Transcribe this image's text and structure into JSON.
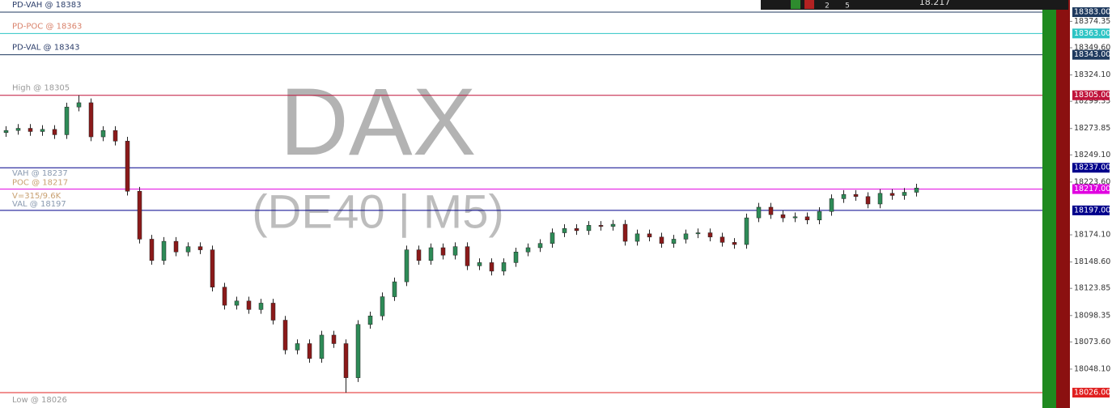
{
  "chart_data": {
    "type": "candlestick",
    "watermark": "DAX",
    "watermark_sub": "(DE40 | M5)",
    "annotation": "V=315/9.6K",
    "toolbar": {
      "buttons": [
        "2",
        "5"
      ],
      "price": "18.217"
    },
    "up_color": "#2e8b57",
    "down_color": "#8b1a1a",
    "ylim": [
      18011.6,
      18394.4
    ],
    "yticks": [
      18374.35,
      {
        "value": 18349.6,
        "label": "18349.60"
      },
      {
        "value": 18324.1,
        "label": "18324.10"
      },
      18299.35,
      18273.85,
      {
        "value": 18249.1,
        "label": "18249.10"
      },
      {
        "value": 18223.6,
        "label": "18223.60"
      },
      {
        "value": 18174.1,
        "label": "18174.10"
      },
      {
        "value": 18148.6,
        "label": "18148.60"
      },
      18123.85,
      18098.35,
      {
        "value": 18073.6,
        "label": "18073.60"
      },
      {
        "value": 18048.1,
        "label": "18048.10"
      }
    ],
    "levels": [
      {
        "label": "PD-VAH @ 18383",
        "value": 18383,
        "tag": "18383.00",
        "color": "#1f3a5f",
        "text_color": "#2d3f6b"
      },
      {
        "label": "PD-POC @ 18363",
        "value": 18363,
        "tag": "18363.00",
        "color": "#2ec4c4",
        "text_color": "#d9826b"
      },
      {
        "label": "PD-VAL @ 18343",
        "value": 18343,
        "tag": "18343.00",
        "color": "#1f3a5f",
        "text_color": "#2d3f6b"
      },
      {
        "label": "High @ 18305",
        "value": 18305,
        "tag": "18305.00",
        "color": "#c0143c",
        "text_color": "#9a9a9a"
      },
      {
        "label": "VAH @ 18237",
        "value": 18237,
        "tag": "18237.00",
        "color": "#00008b",
        "text_color": "#8a9ab0"
      },
      {
        "label": "POC @ 18217",
        "value": 18217,
        "tag": "18217.00",
        "color": "#e000e0",
        "text_color": "#c8a070"
      },
      {
        "label": "VAL @ 18197",
        "value": 18197,
        "tag": "18197.00",
        "color": "#00008b",
        "text_color": "#8a9ab0"
      },
      {
        "label": "Low @ 18026",
        "value": 18026,
        "tag": "18026.00",
        "color": "#e02020",
        "text_color": "#9a9a9a"
      }
    ],
    "open": [
      18270,
      18272,
      18274,
      18271,
      18273,
      18268,
      18294,
      18298,
      18266,
      18272,
      18262,
      18215,
      18170,
      18150,
      18168,
      18158,
      18163,
      18160,
      18125,
      18108,
      18112,
      18104,
      18110,
      18094,
      18066,
      18072,
      18058,
      18080,
      18072,
      18040,
      18090,
      18098,
      18116,
      18130,
      18160,
      18150,
      18162,
      18155,
      18163,
      18145,
      18148,
      18140,
      18148,
      18158,
      18162,
      18166,
      18176,
      18180,
      18178,
      18183,
      18182,
      18184,
      18168,
      18175,
      18172,
      18166,
      18170,
      18175,
      18176,
      18172,
      18167,
      18165,
      18190,
      18200,
      18193,
      18190,
      18191,
      18188,
      18196,
      18208,
      18212,
      18210,
      18203,
      18213,
      18211,
      18214
    ],
    "high": [
      18276,
      18278,
      18278,
      18277,
      18277,
      18298,
      18305,
      18302,
      18276,
      18276,
      18266,
      18219,
      18174,
      18172,
      18172,
      18167,
      18167,
      18164,
      18129,
      18116,
      18116,
      18114,
      18114,
      18098,
      18076,
      18076,
      18084,
      18084,
      18076,
      18094,
      18102,
      18120,
      18134,
      18164,
      18164,
      18166,
      18166,
      18167,
      18167,
      18152,
      18152,
      18152,
      18162,
      18166,
      18170,
      18180,
      18184,
      18184,
      18187,
      18187,
      18188,
      18188,
      18179,
      18179,
      18176,
      18174,
      18179,
      18180,
      18180,
      18176,
      18171,
      18194,
      18204,
      18204,
      18197,
      18195,
      18195,
      18200,
      18212,
      18216,
      18216,
      18214,
      18217,
      18217,
      18218,
      18222
    ],
    "low": [
      18266,
      18268,
      18267,
      18267,
      18264,
      18264,
      18290,
      18262,
      18262,
      18258,
      18211,
      18166,
      18146,
      18146,
      18154,
      18154,
      18156,
      18121,
      18104,
      18104,
      18100,
      18100,
      18090,
      18062,
      18062,
      18054,
      18054,
      18068,
      18026,
      18036,
      18086,
      18094,
      18112,
      18126,
      18146,
      18146,
      18151,
      18151,
      18141,
      18141,
      18136,
      18136,
      18144,
      18154,
      18158,
      18162,
      18172,
      18174,
      18174,
      18178,
      18178,
      18164,
      18164,
      18168,
      18162,
      18162,
      18166,
      18171,
      18168,
      18163,
      18161,
      18161,
      18186,
      18189,
      18186,
      18186,
      18184,
      18184,
      18192,
      18204,
      18206,
      18199,
      18199,
      18207,
      18207,
      18210
    ],
    "close": [
      18272,
      18274,
      18271,
      18273,
      18268,
      18294,
      18298,
      18266,
      18272,
      18262,
      18215,
      18170,
      18150,
      18168,
      18158,
      18163,
      18160,
      18125,
      18108,
      18112,
      18104,
      18110,
      18094,
      18066,
      18072,
      18058,
      18080,
      18072,
      18040,
      18090,
      18098,
      18116,
      18130,
      18160,
      18150,
      18162,
      18155,
      18163,
      18145,
      18148,
      18140,
      18148,
      18158,
      18162,
      18166,
      18176,
      18180,
      18178,
      18183,
      18182,
      18184,
      18168,
      18175,
      18172,
      18166,
      18170,
      18175,
      18176,
      18172,
      18167,
      18165,
      18190,
      18200,
      18193,
      18190,
      18191,
      18188,
      18196,
      18208,
      18212,
      18210,
      18203,
      18213,
      18211,
      18214,
      18218
    ]
  }
}
